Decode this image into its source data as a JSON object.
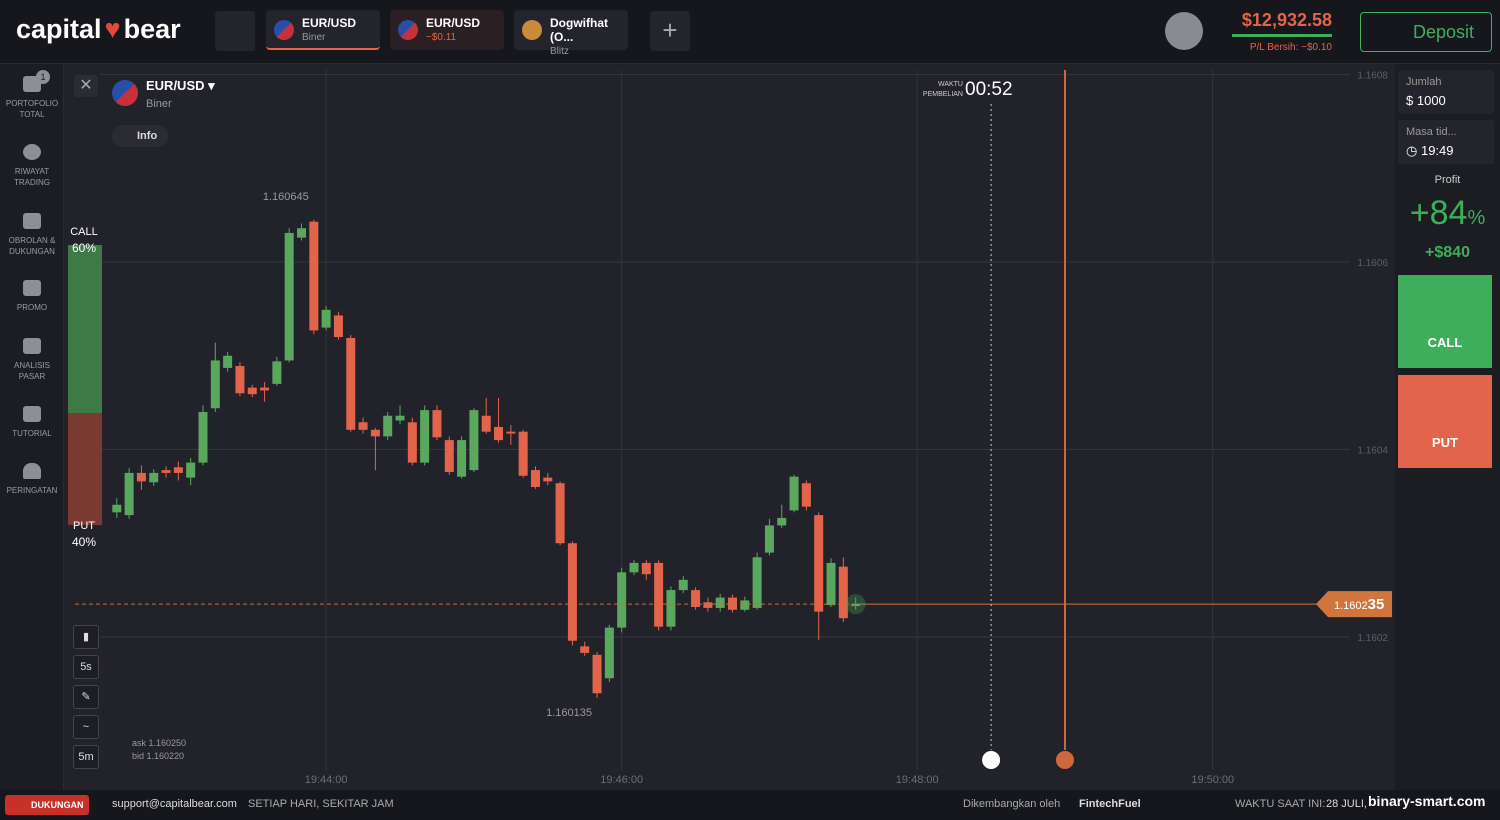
{
  "header": {
    "logo_left": "capital",
    "logo_right": "bear",
    "tabs": [
      {
        "title": "EUR/USD",
        "sub": "Biner"
      },
      {
        "title": "EUR/USD",
        "sub": "−$0.11"
      },
      {
        "title": "Dogwifhat (O...",
        "sub": "Blitz"
      }
    ],
    "balance": "$12,932.58",
    "pnl": "P/L Bersih: −$0.10",
    "deposit": "Deposit"
  },
  "sidebar": {
    "badge": "1",
    "items": [
      "PORTOFOLIO TOTAL",
      "RIWAYAT TRADING",
      "OBROLAN & DUKUNGAN",
      "PROMO",
      "ANALISIS PASAR",
      "TUTORIAL",
      "PERINGATAN"
    ]
  },
  "asset": {
    "name": "EUR/USD",
    "kind": "Biner",
    "info": "Info"
  },
  "purchase": {
    "label": "WAKTU PEMBELIAN",
    "time": "00:52"
  },
  "sentiment": {
    "call_label": "CALL",
    "call": 60,
    "call_value_label": "60%",
    "put_label": "PUT",
    "put": 40,
    "put_value_label": "40%"
  },
  "tools": {
    "interval": "5s",
    "timeframe": "5m",
    "ask": "ask 1.160250",
    "bid": "bid 1.160220"
  },
  "chart": {
    "type": "candlestick",
    "xlim": [
      70936,
      71474
    ],
    "xticks": [
      {
        "value": 71040,
        "label": "19:44:00"
      },
      {
        "value": 71160,
        "label": "19:46:00"
      },
      {
        "value": 71280,
        "label": "19:48:00"
      },
      {
        "value": 71400,
        "label": "19:50:00"
      }
    ],
    "ylim": [
      1.16005,
      1.1608
    ],
    "yticks": [
      1.1602,
      1.1604,
      1.1606,
      1.1608
    ],
    "x": [
      70955,
      70960,
      70965,
      70970,
      70975,
      70980,
      70985,
      70990,
      70995,
      71000,
      71005,
      71010,
      71015,
      71020,
      71025,
      71030,
      71035,
      71040,
      71045,
      71050,
      71055,
      71060,
      71065,
      71070,
      71075,
      71080,
      71085,
      71090,
      71095,
      71100,
      71105,
      71110,
      71115,
      71120,
      71125,
      71130,
      71135,
      71140,
      71145,
      71150,
      71155,
      71160,
      71165,
      71170,
      71175,
      71180,
      71185,
      71190,
      71195,
      71200,
      71205,
      71210,
      71215,
      71220,
      71225,
      71230,
      71235,
      71240,
      71245,
      71250,
      71255
    ],
    "open": [
      1.160333,
      1.16033,
      1.160375,
      1.160365,
      1.160378,
      1.160381,
      1.16037,
      1.160386,
      1.160444,
      1.160487,
      1.160489,
      1.160466,
      1.160466,
      1.16047,
      1.160495,
      1.160626,
      1.160643,
      1.16053,
      1.160543,
      1.160519,
      1.160429,
      1.160421,
      1.160414,
      1.160431,
      1.160429,
      1.160386,
      1.160442,
      1.16041,
      1.160371,
      1.160378,
      1.160436,
      1.160424,
      1.160419,
      1.160419,
      1.160378,
      1.16037,
      1.160364,
      1.1603,
      1.16019,
      1.160181,
      1.160156,
      1.16021,
      1.160269,
      1.160279,
      1.160279,
      1.160211,
      1.16025,
      1.16025,
      1.160237,
      1.160231,
      1.160242,
      1.160229,
      1.160231,
      1.16029,
      1.160319,
      1.160335,
      1.160364,
      1.16033,
      1.160234,
      1.160275,
      1.160233
    ],
    "high": [
      1.160348,
      1.16038,
      1.160383,
      1.160379,
      1.160382,
      1.160387,
      1.160391,
      1.160447,
      1.160514,
      1.160504,
      1.160493,
      1.160469,
      1.160472,
      1.160499,
      1.160636,
      1.160641,
      1.160645,
      1.160553,
      1.160547,
      1.160522,
      1.160434,
      1.160423,
      1.16044,
      1.160447,
      1.160434,
      1.160447,
      1.160447,
      1.160414,
      1.160414,
      1.160444,
      1.160455,
      1.160455,
      1.160426,
      1.160421,
      1.160382,
      1.160375,
      1.160366,
      1.160302,
      1.160195,
      1.160184,
      1.160213,
      1.160274,
      1.160282,
      1.160282,
      1.160282,
      1.160254,
      1.160265,
      1.160253,
      1.160242,
      1.160246,
      1.160245,
      1.160243,
      1.16029,
      1.160326,
      1.160341,
      1.160373,
      1.160367,
      1.160333,
      1.160284,
      1.160285,
      1.160242
    ],
    "low": [
      1.160327,
      1.160326,
      1.160357,
      1.160361,
      1.16037,
      1.160367,
      1.160362,
      1.160383,
      1.16044,
      1.160483,
      1.160457,
      1.160456,
      1.160451,
      1.160468,
      1.160493,
      1.160623,
      1.160523,
      1.160527,
      1.160517,
      1.160419,
      1.160417,
      1.160378,
      1.16041,
      1.160427,
      1.160383,
      1.160383,
      1.16041,
      1.160373,
      1.160369,
      1.160376,
      1.160417,
      1.160407,
      1.160405,
      1.16037,
      1.160358,
      1.160362,
      1.160298,
      1.160191,
      1.16018,
      1.160135,
      1.160152,
      1.160205,
      1.160266,
      1.160261,
      1.160207,
      1.160207,
      1.160247,
      1.160229,
      1.160227,
      1.160227,
      1.160226,
      1.160227,
      1.160229,
      1.160287,
      1.160316,
      1.160333,
      1.160335,
      1.160197,
      1.160232,
      1.160216,
      1.160229
    ],
    "close": [
      1.160341,
      1.160375,
      1.160366,
      1.160375,
      1.160375,
      1.160375,
      1.160386,
      1.16044,
      1.160495,
      1.1605,
      1.16046,
      1.160459,
      1.160463,
      1.160494,
      1.160631,
      1.160636,
      1.160527,
      1.160549,
      1.16052,
      1.160421,
      1.160421,
      1.160414,
      1.160436,
      1.160436,
      1.160386,
      1.160442,
      1.160413,
      1.160376,
      1.16041,
      1.160442,
      1.160419,
      1.16041,
      1.160417,
      1.160372,
      1.16036,
      1.160366,
      1.1603,
      1.160196,
      1.160183,
      1.16014,
      1.16021,
      1.160269,
      1.160279,
      1.160267,
      1.160211,
      1.16025,
      1.160261,
      1.160232,
      1.160231,
      1.160242,
      1.160229,
      1.160239,
      1.160285,
      1.160319,
      1.160327,
      1.160371,
      1.160339,
      1.160227,
      1.160279,
      1.16022,
      1.160235
    ],
    "up_color": "#5aa85e",
    "down_color": "#e2654b",
    "max_label": "1.160645",
    "min_label": "1.160135",
    "current_price": 1.160235,
    "current_price_label_main": "1.1602",
    "current_price_label_tail": "35",
    "purchase_line_x": 71310,
    "expiry_line_x": 71340
  },
  "trade": {
    "amount_label": "Jumlah",
    "currency": "$",
    "amount": "1000",
    "duration_label": "Masa tid...",
    "duration": "19:49",
    "profit_label": "Profit",
    "profit_sign": "+84",
    "profit_unit": "%",
    "profit_amount": "+$840",
    "call": "CALL",
    "put": "PUT"
  },
  "footer": {
    "support": "DUKUNGAN",
    "email": "support@capitalbear.com",
    "hours": "SETIAP HARI, SEKITAR JAM",
    "dev": "Dikembangkan oleh",
    "dev_name": "FintechFuel",
    "time_label": "WAKTU SAAT INI:",
    "date": "28 JULI,",
    "watermark": "binary-smart.com"
  }
}
